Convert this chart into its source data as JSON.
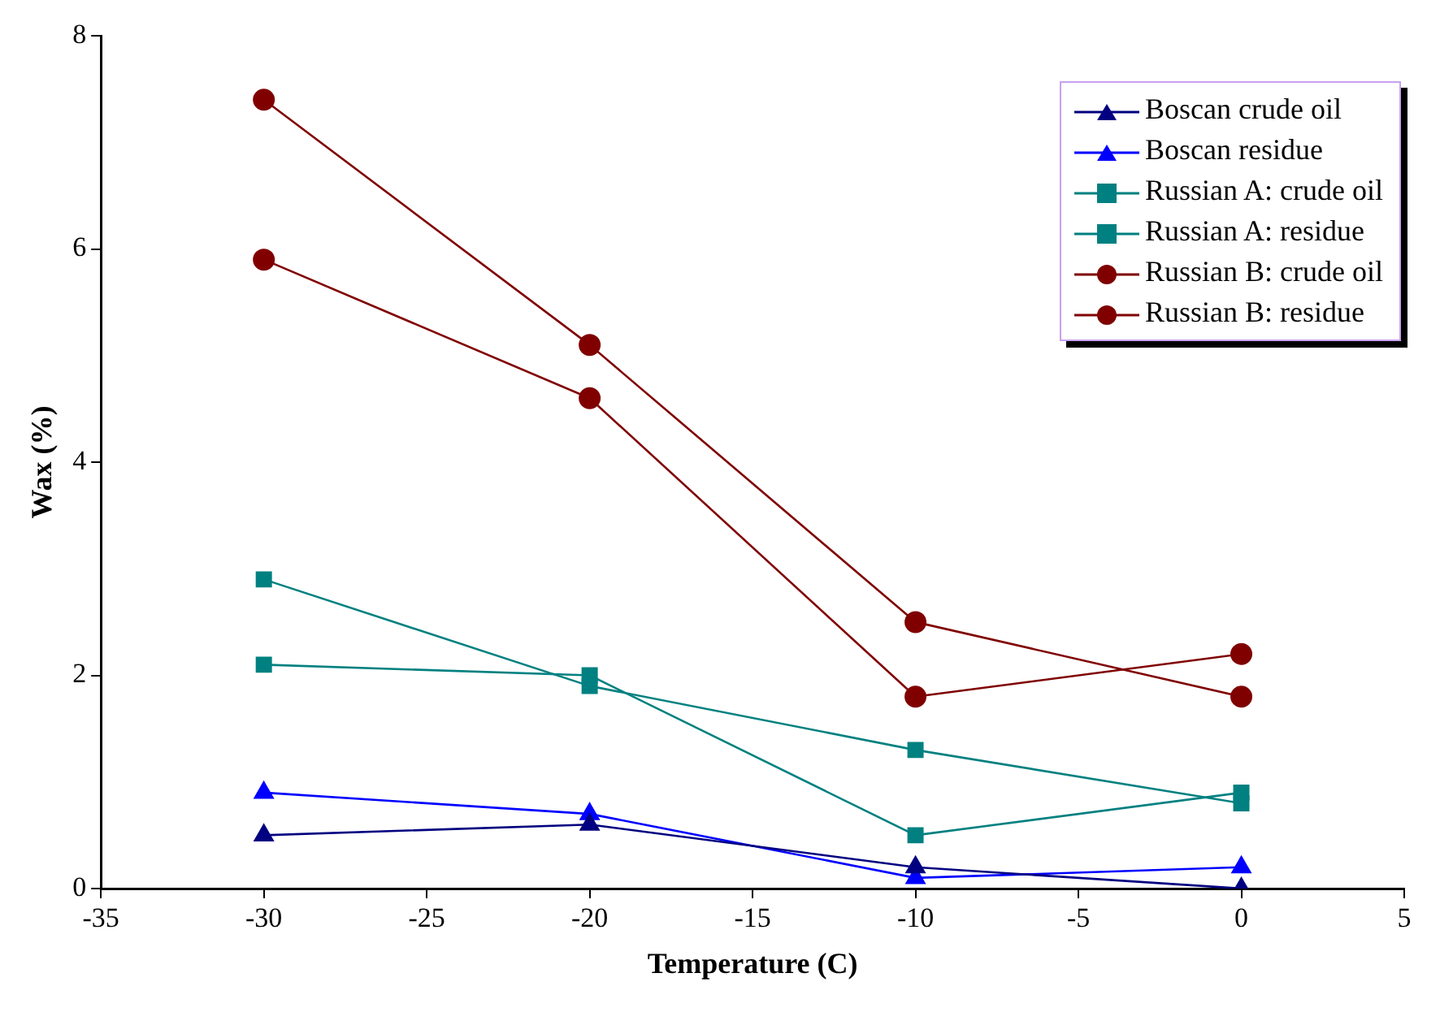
{
  "chart_data": {
    "type": "line",
    "xlabel": "Temperature (C)",
    "ylabel": "Wax (%)",
    "x": [
      -30,
      -20,
      -10,
      0
    ],
    "xlim": [
      -35,
      5
    ],
    "xticks": [
      -35,
      -30,
      -25,
      -20,
      -15,
      -10,
      -5,
      0,
      5
    ],
    "ylim": [
      0,
      8
    ],
    "yticks": [
      0,
      2,
      4,
      6,
      8
    ],
    "grid": false,
    "legend": "top right",
    "series": [
      {
        "name": "Boscan crude oil",
        "color": "#000080",
        "marker": "triangle",
        "values": [
          0.5,
          0.6,
          0.2,
          0
        ]
      },
      {
        "name": "Boscan residue",
        "color": "#0000ff",
        "marker": "triangle",
        "values": [
          0.9,
          0.7,
          0.1,
          0.2
        ]
      },
      {
        "name": "Russian A: crude oil",
        "color": "#008080",
        "marker": "square",
        "values": [
          2.9,
          1.9,
          1.3,
          0.8
        ]
      },
      {
        "name": "Russian A: residue",
        "color": "#008080",
        "marker": "square",
        "values": [
          2.1,
          2.0,
          0.5,
          0.9
        ]
      },
      {
        "name": "Russian B: crude oil",
        "color": "#800000",
        "marker": "circle",
        "values": [
          7.4,
          5.1,
          2.5,
          1.8
        ]
      },
      {
        "name": "Russian B: residue",
        "color": "#800000",
        "marker": "circle",
        "values": [
          5.9,
          4.6,
          1.8,
          2.2
        ]
      }
    ]
  }
}
